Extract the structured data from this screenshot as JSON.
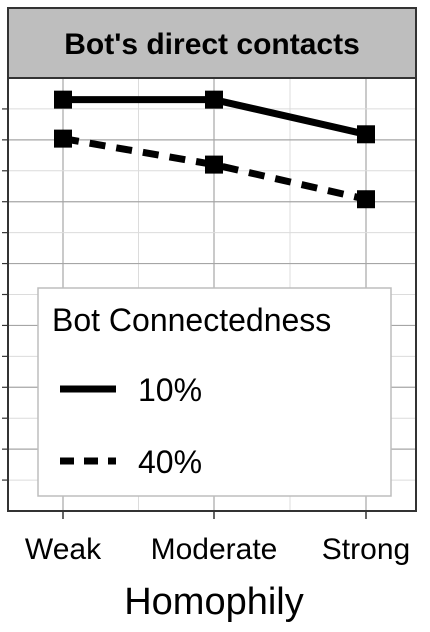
{
  "chart_data": {
    "type": "line",
    "title": "Bot's direct contacts",
    "xlabel": "Homophily",
    "ylabel": "",
    "categories": [
      "Weak",
      "Moderate",
      "Strong"
    ],
    "ylim": [
      0,
      1
    ],
    "grid": true,
    "legend": {
      "title": "Bot Connectedness",
      "placement": "bottom-left inside"
    },
    "series": [
      {
        "name": "10%",
        "values": [
          0.95,
          0.95,
          0.87
        ],
        "line_style": "solid",
        "color": "#000000"
      },
      {
        "name": "40%",
        "values": [
          0.86,
          0.8,
          0.72
        ],
        "line_style": "dashed",
        "color": "#000000"
      }
    ]
  },
  "colors": {
    "strip_fill": "#bebebe",
    "grid_major": "#a6a6a6",
    "grid_minor": "#dcdcdc",
    "panel_border": "#333333"
  }
}
